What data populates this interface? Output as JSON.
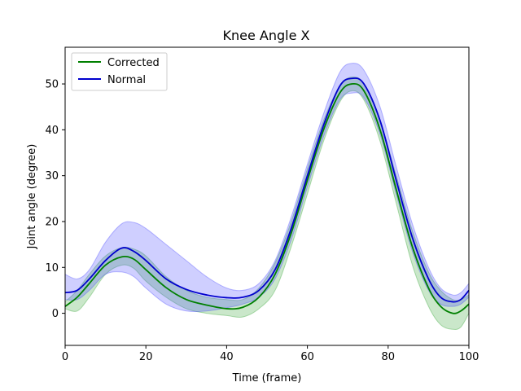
{
  "chart_data": {
    "type": "line",
    "title": "Knee Angle X",
    "xlabel": "Time (frame)",
    "ylabel": "Joint angle (degree)",
    "xlim": [
      0,
      100
    ],
    "ylim": [
      -7,
      58
    ],
    "xticks": [
      0,
      20,
      40,
      60,
      80,
      100
    ],
    "yticks": [
      0,
      10,
      20,
      30,
      40,
      50
    ],
    "grid": false,
    "legend_position": "top-left",
    "series": [
      {
        "name": "Corrected",
        "color": "#008000",
        "band_color": "#2ca02c",
        "x": [
          0,
          3,
          6,
          10,
          14,
          17,
          20,
          25,
          30,
          35,
          40,
          44,
          48,
          52,
          56,
          60,
          64,
          68,
          71,
          74,
          78,
          82,
          86,
          90,
          93,
          96,
          98,
          100
        ],
        "mean": [
          1.5,
          3.5,
          6.5,
          10.5,
          12.3,
          11.8,
          9.5,
          5.6,
          3.0,
          1.8,
          1.0,
          1.3,
          3.5,
          8.5,
          17.5,
          29.0,
          40.0,
          48.0,
          50.0,
          48.5,
          40.0,
          27.0,
          14.5,
          5.5,
          1.5,
          0.0,
          0.5,
          2.0
        ],
        "upper": [
          2.5,
          5.0,
          8.5,
          12.5,
          14.3,
          14.0,
          12.5,
          8.0,
          5.0,
          3.5,
          3.0,
          3.0,
          5.5,
          11.0,
          20.0,
          31.5,
          42.0,
          49.5,
          51.5,
          50.0,
          42.0,
          30.0,
          18.0,
          9.0,
          5.0,
          3.0,
          3.0,
          4.0
        ],
        "lower": [
          1.0,
          0.5,
          3.5,
          8.5,
          10.5,
          9.8,
          7.0,
          3.5,
          1.0,
          0.0,
          -0.5,
          -0.8,
          1.0,
          5.0,
          14.5,
          26.0,
          37.5,
          46.0,
          48.5,
          46.5,
          37.5,
          24.0,
          10.5,
          1.5,
          -2.5,
          -3.5,
          -3.0,
          0.0
        ]
      },
      {
        "name": "Normal",
        "color": "#0000cd",
        "band_color": "#4040ff",
        "x": [
          0,
          3,
          6,
          10,
          14,
          17,
          20,
          25,
          30,
          35,
          40,
          44,
          48,
          52,
          56,
          60,
          64,
          68,
          71,
          74,
          78,
          82,
          86,
          90,
          93,
          96,
          98,
          100
        ],
        "mean": [
          4.5,
          5.0,
          7.5,
          11.5,
          14.2,
          13.5,
          11.5,
          7.5,
          5.2,
          4.0,
          3.4,
          3.5,
          5.0,
          9.5,
          18.5,
          30.0,
          41.0,
          49.5,
          51.2,
          50.0,
          42.0,
          29.0,
          16.5,
          7.5,
          3.5,
          2.5,
          3.0,
          5.0
        ],
        "upper": [
          8.5,
          7.5,
          9.5,
          15.5,
          19.5,
          19.8,
          18.5,
          15.0,
          11.5,
          8.0,
          5.5,
          5.0,
          6.5,
          11.5,
          21.0,
          32.5,
          43.5,
          52.5,
          54.5,
          53.0,
          45.0,
          32.0,
          19.5,
          10.0,
          5.5,
          4.0,
          4.5,
          6.5
        ],
        "lower": [
          3.0,
          3.0,
          5.0,
          8.5,
          9.0,
          8.0,
          5.5,
          2.0,
          0.5,
          0.5,
          1.2,
          2.0,
          3.5,
          7.5,
          16.0,
          27.5,
          38.5,
          46.5,
          48.0,
          47.0,
          39.0,
          26.0,
          13.5,
          5.0,
          2.0,
          1.5,
          2.0,
          3.5
        ]
      }
    ]
  }
}
